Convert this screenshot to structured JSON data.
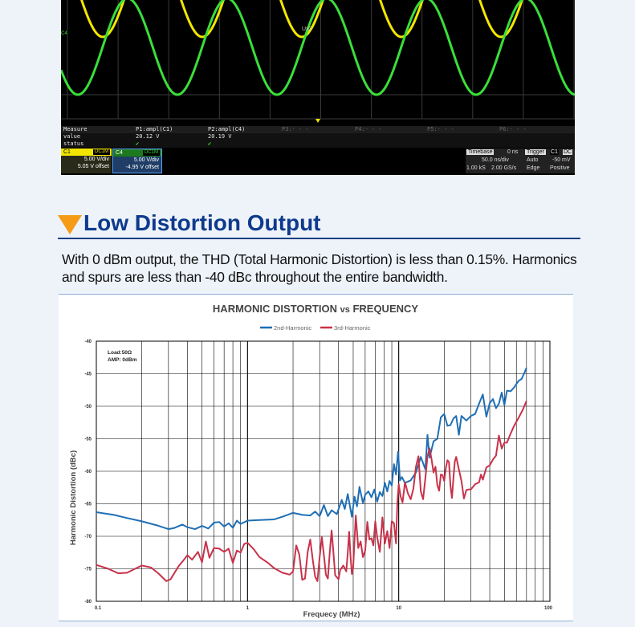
{
  "scope": {
    "colors": {
      "ch1": "#f2e600",
      "ch4": "#3adf3a",
      "grid": "#3a3a3a",
      "background": "#000000"
    },
    "ch4_marker": "C4",
    "cursor_label": "Ux2",
    "measure": {
      "headers": [
        "Measure",
        "P1:ampl(C1)",
        "P2:ampl(C4)",
        "P3:- - -",
        "P4:- - -",
        "P5:- - -",
        "P6:- - -"
      ],
      "value_label": "value",
      "values": [
        "20.12 V",
        "20.19 V"
      ],
      "status_label": "status",
      "status": [
        "✔",
        "✔"
      ]
    },
    "channels": [
      {
        "name": "C1",
        "coupling": "DC1M",
        "vdiv": "5.00 V/div",
        "offset": "5.05 V offset"
      },
      {
        "name": "C4",
        "coupling": "DC1M",
        "vdiv": "5.00 V/div",
        "offset": "-4.95 V offset"
      }
    ],
    "timebase": {
      "label": "Timebase",
      "delay": "0 ns",
      "tdiv": "50.0 ns/div",
      "samples": "1.00 kS",
      "rate": "2.00 GS/s"
    },
    "trigger": {
      "label": "Trigger",
      "source": "C1",
      "coupling": "DC",
      "mode": "Auto",
      "level": "-50 mV",
      "type": "Edge",
      "slope": "Positive"
    }
  },
  "section": {
    "title": "Low Distortion Output",
    "paragraph": "With 0 dBm output, the THD (Total Harmonic Distortion) is less than 0.15%. Harmonics and spurs are less than -40 dBc throughout the entire bandwidth."
  },
  "chart_data": {
    "type": "line",
    "title": "HARMONIC DISTORTION vs FREQUENCY",
    "title_parts": {
      "a": "HARMONIC DISTORTION ",
      "b": "vs",
      "c": " FREQUENCY"
    },
    "xlabel": "Frequecy (MHz)",
    "ylabel": "Harmonic Distortion (dBc)",
    "x_scale": "log",
    "xlim": [
      0.1,
      100
    ],
    "ylim": [
      -80,
      -40
    ],
    "x_ticks": [
      0.1,
      1,
      10,
      100
    ],
    "x_tick_labels": [
      "0.1",
      "1",
      "10",
      "100"
    ],
    "y_ticks": [
      -40,
      -45,
      -50,
      -55,
      -60,
      -65,
      -70,
      -75,
      -80
    ],
    "y_tick_labels": [
      "-40",
      "-45",
      "-50",
      "-55",
      "-60",
      "-65",
      "-70",
      "-75",
      "-80"
    ],
    "grid": true,
    "legend_position": "top-center",
    "annotations": [
      "Load:50Ω",
      "AMP:  0dBm"
    ],
    "series": [
      {
        "name": "2nd-Harmonic",
        "color": "#1f6fb5",
        "points": [
          [
            0.1,
            -66.3
          ],
          [
            0.13,
            -66.7
          ],
          [
            0.16,
            -67.2
          ],
          [
            0.2,
            -67.7
          ],
          [
            0.25,
            -68.3
          ],
          [
            0.3,
            -68.9
          ],
          [
            0.33,
            -68.7
          ],
          [
            0.37,
            -68.2
          ],
          [
            0.4,
            -68.6
          ],
          [
            0.45,
            -68.9
          ],
          [
            0.5,
            -68.4
          ],
          [
            0.55,
            -68.8
          ],
          [
            0.6,
            -67.9
          ],
          [
            0.65,
            -67.8
          ],
          [
            0.7,
            -68.5
          ],
          [
            0.75,
            -68.0
          ],
          [
            0.8,
            -68.7
          ],
          [
            0.85,
            -67.6
          ],
          [
            0.9,
            -68.1
          ],
          [
            1.0,
            -67.6
          ],
          [
            1.2,
            -67.5
          ],
          [
            1.5,
            -67.4
          ],
          [
            1.7,
            -67.0
          ],
          [
            2.0,
            -66.4
          ],
          [
            2.3,
            -66.7
          ],
          [
            2.6,
            -66.8
          ],
          [
            2.8,
            -66.2
          ],
          [
            3.0,
            -66.9
          ],
          [
            3.2,
            -65.2
          ],
          [
            3.4,
            -66.9
          ],
          [
            3.6,
            -66.0
          ],
          [
            3.9,
            -66.6
          ],
          [
            4.2,
            -64.4
          ],
          [
            4.4,
            -65.8
          ],
          [
            4.6,
            -63.5
          ],
          [
            4.9,
            -67.0
          ],
          [
            5.1,
            -63.9
          ],
          [
            5.3,
            -65.4
          ],
          [
            5.5,
            -62.4
          ],
          [
            5.8,
            -64.9
          ],
          [
            6.0,
            -63.6
          ],
          [
            6.3,
            -63.1
          ],
          [
            6.6,
            -64.0
          ],
          [
            6.9,
            -62.8
          ],
          [
            7.2,
            -64.7
          ],
          [
            7.5,
            -63.2
          ],
          [
            7.8,
            -63.8
          ],
          [
            8.1,
            -61.8
          ],
          [
            8.4,
            -63.1
          ],
          [
            8.7,
            -61.5
          ],
          [
            9.0,
            -62.2
          ],
          [
            9.3,
            -58.9
          ],
          [
            9.6,
            -60.5
          ],
          [
            9.9,
            -57.0
          ],
          [
            10.2,
            -61.4
          ],
          [
            10.5,
            -60.9
          ],
          [
            11.0,
            -61.8
          ],
          [
            12.0,
            -61.4
          ],
          [
            13.0,
            -60.2
          ],
          [
            14.0,
            -57.8
          ],
          [
            15.0,
            -59.7
          ],
          [
            15.5,
            -54.4
          ],
          [
            16.0,
            -57.9
          ],
          [
            17.0,
            -55.4
          ],
          [
            18.0,
            -55.0
          ],
          [
            19.0,
            -51.7
          ],
          [
            20.0,
            -51.2
          ],
          [
            21.0,
            -53.0
          ],
          [
            22.0,
            -52.9
          ],
          [
            23.0,
            -51.9
          ],
          [
            24.0,
            -51.5
          ],
          [
            25.0,
            -54.4
          ],
          [
            26.0,
            -51.5
          ],
          [
            28.0,
            -52.2
          ],
          [
            30.0,
            -51.5
          ],
          [
            32.0,
            -51.2
          ],
          [
            34.0,
            -49.6
          ],
          [
            36.0,
            -48.2
          ],
          [
            38.0,
            -51.6
          ],
          [
            40.0,
            -49.5
          ],
          [
            42.0,
            -48.9
          ],
          [
            44.0,
            -50.3
          ],
          [
            46.0,
            -49.6
          ],
          [
            48.0,
            -47.9
          ],
          [
            50.0,
            -49.8
          ],
          [
            52.0,
            -47.6
          ],
          [
            55.0,
            -47.7
          ],
          [
            58.0,
            -47.1
          ],
          [
            62.0,
            -46.1
          ],
          [
            65.0,
            -45.8
          ],
          [
            68.0,
            -44.8
          ],
          [
            70.0,
            -44.1
          ]
        ]
      },
      {
        "name": "3rd-Harmonic",
        "color": "#c8324a",
        "points": [
          [
            0.1,
            -74.4
          ],
          [
            0.12,
            -75.0
          ],
          [
            0.14,
            -75.7
          ],
          [
            0.16,
            -75.6
          ],
          [
            0.18,
            -75.0
          ],
          [
            0.2,
            -74.5
          ],
          [
            0.23,
            -74.8
          ],
          [
            0.26,
            -75.8
          ],
          [
            0.29,
            -76.9
          ],
          [
            0.31,
            -76.6
          ],
          [
            0.35,
            -74.6
          ],
          [
            0.38,
            -73.6
          ],
          [
            0.4,
            -72.9
          ],
          [
            0.43,
            -73.6
          ],
          [
            0.47,
            -72.4
          ],
          [
            0.5,
            -74.0
          ],
          [
            0.53,
            -70.8
          ],
          [
            0.56,
            -73.3
          ],
          [
            0.6,
            -71.8
          ],
          [
            0.65,
            -71.9
          ],
          [
            0.7,
            -72.4
          ],
          [
            0.75,
            -71.9
          ],
          [
            0.8,
            -74.1
          ],
          [
            0.85,
            -72.2
          ],
          [
            0.9,
            -72.5
          ],
          [
            0.95,
            -71.2
          ],
          [
            1.0,
            -71.0
          ],
          [
            1.1,
            -72.0
          ],
          [
            1.2,
            -73.2
          ],
          [
            1.35,
            -74.0
          ],
          [
            1.5,
            -74.9
          ],
          [
            1.7,
            -75.6
          ],
          [
            1.9,
            -75.9
          ],
          [
            2.0,
            -75.4
          ],
          [
            2.1,
            -71.4
          ],
          [
            2.2,
            -72.8
          ],
          [
            2.3,
            -76.7
          ],
          [
            2.4,
            -76.5
          ],
          [
            2.5,
            -72.4
          ],
          [
            2.6,
            -70.5
          ],
          [
            2.7,
            -73.6
          ],
          [
            2.8,
            -76.2
          ],
          [
            2.9,
            -76.9
          ],
          [
            3.0,
            -73.2
          ],
          [
            3.1,
            -70.1
          ],
          [
            3.2,
            -72.9
          ],
          [
            3.3,
            -75.9
          ],
          [
            3.4,
            -76.5
          ],
          [
            3.5,
            -72.4
          ],
          [
            3.6,
            -69.1
          ],
          [
            3.7,
            -72.5
          ],
          [
            3.8,
            -76.0
          ],
          [
            4.0,
            -76.6
          ],
          [
            4.1,
            -75.2
          ],
          [
            4.3,
            -74.5
          ],
          [
            4.5,
            -75.4
          ],
          [
            4.6,
            -72.6
          ],
          [
            4.7,
            -69.3
          ],
          [
            4.8,
            -73.1
          ],
          [
            4.9,
            -75.8
          ],
          [
            5.0,
            -74.7
          ],
          [
            5.2,
            -66.8
          ],
          [
            5.4,
            -71.8
          ],
          [
            5.6,
            -70.8
          ],
          [
            5.8,
            -73.2
          ],
          [
            6.0,
            -72.2
          ],
          [
            6.2,
            -67.8
          ],
          [
            6.4,
            -70.5
          ],
          [
            6.6,
            -70.3
          ],
          [
            6.8,
            -71.4
          ],
          [
            7.0,
            -67.7
          ],
          [
            7.2,
            -70.1
          ],
          [
            7.5,
            -72.4
          ],
          [
            7.8,
            -67.1
          ],
          [
            8.1,
            -71.1
          ],
          [
            8.4,
            -69.2
          ],
          [
            8.7,
            -71.8
          ],
          [
            9.0,
            -67.7
          ],
          [
            9.3,
            -68.0
          ],
          [
            9.6,
            -71.1
          ],
          [
            9.8,
            -64.8
          ],
          [
            10.0,
            -62.0
          ],
          [
            10.3,
            -63.9
          ],
          [
            10.6,
            -64.8
          ],
          [
            11.0,
            -61.7
          ],
          [
            11.5,
            -63.4
          ],
          [
            12.0,
            -64.3
          ],
          [
            12.5,
            -62.7
          ],
          [
            13.0,
            -59.3
          ],
          [
            13.5,
            -57.7
          ],
          [
            14.0,
            -63.1
          ],
          [
            14.5,
            -64.3
          ],
          [
            15.0,
            -61.1
          ],
          [
            15.5,
            -57.7
          ],
          [
            16.0,
            -56.5
          ],
          [
            16.5,
            -58.2
          ],
          [
            17.0,
            -60.2
          ],
          [
            17.5,
            -59.3
          ],
          [
            18.0,
            -62.1
          ],
          [
            18.5,
            -63.0
          ],
          [
            19.0,
            -60.5
          ],
          [
            19.5,
            -60.6
          ],
          [
            20.0,
            -61.5
          ],
          [
            20.5,
            -59.5
          ],
          [
            21.0,
            -58.3
          ],
          [
            21.5,
            -58.6
          ],
          [
            22.0,
            -62.3
          ],
          [
            22.5,
            -64.1
          ],
          [
            23.0,
            -61.1
          ],
          [
            23.5,
            -58.5
          ],
          [
            24.0,
            -57.8
          ],
          [
            25.0,
            -59.7
          ],
          [
            26.0,
            -61.5
          ],
          [
            27.0,
            -64.2
          ],
          [
            28.0,
            -62.9
          ],
          [
            29.0,
            -62.8
          ],
          [
            30.0,
            -62.8
          ],
          [
            32.0,
            -62.0
          ],
          [
            34.0,
            -61.7
          ],
          [
            35.0,
            -60.5
          ],
          [
            36.0,
            -61.3
          ],
          [
            38.0,
            -59.4
          ],
          [
            40.0,
            -59.1
          ],
          [
            42.0,
            -58.2
          ],
          [
            44.0,
            -57.6
          ],
          [
            46.0,
            -54.5
          ],
          [
            48.0,
            -56.5
          ],
          [
            50.0,
            -55.6
          ],
          [
            52.0,
            -55.6
          ],
          [
            55.0,
            -54.2
          ],
          [
            58.0,
            -53.0
          ],
          [
            62.0,
            -51.8
          ],
          [
            66.0,
            -50.6
          ],
          [
            70.0,
            -49.2
          ]
        ]
      }
    ]
  }
}
